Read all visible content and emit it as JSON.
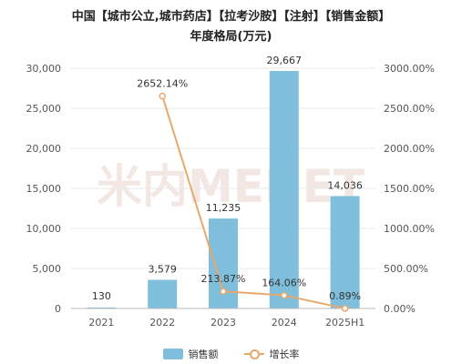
{
  "title_line1": "中国【城市公立,城市药店】【拉考沙胺】【注射】【销售金额】",
  "title_line2": "年度格局(万元)",
  "watermark": "米内MENET",
  "colors": {
    "bar": "#7fbfdc",
    "line": "#e9a86b",
    "grid": "#e8e8e8",
    "watermark": "#f3e7e4"
  },
  "chart_data": {
    "type": "bar",
    "categories": [
      "2021",
      "2022",
      "2023",
      "2024",
      "2025H1"
    ],
    "series": [
      {
        "name": "销售额",
        "type": "bar",
        "axis": "left",
        "values": [
          130,
          3579,
          11235,
          29667,
          14036
        ],
        "labels": [
          "130",
          "3,579",
          "11,235",
          "29,667",
          "14,036"
        ]
      },
      {
        "name": "增长率",
        "type": "line",
        "axis": "right",
        "values": [
          null,
          2652.14,
          213.87,
          164.06,
          0.89
        ],
        "labels": [
          "",
          "2652.14%",
          "213.87%",
          "164.06%",
          "0.89%"
        ]
      }
    ],
    "y_left": {
      "min": 0,
      "max": 30000,
      "ticks": [
        0,
        5000,
        10000,
        15000,
        20000,
        25000,
        30000
      ],
      "tick_labels": [
        "0",
        "5,000",
        "10,000",
        "15,000",
        "20,000",
        "25,000",
        "30,000"
      ]
    },
    "y_right": {
      "min": 0,
      "max": 3000,
      "ticks": [
        0,
        500,
        1000,
        1500,
        2000,
        2500,
        3000
      ],
      "tick_labels": [
        "0.00%",
        "500.00%",
        "1000.00%",
        "1500.00%",
        "2000.00%",
        "2500.00%",
        "3000.00%"
      ]
    },
    "grid": true,
    "legend_position": "bottom"
  }
}
